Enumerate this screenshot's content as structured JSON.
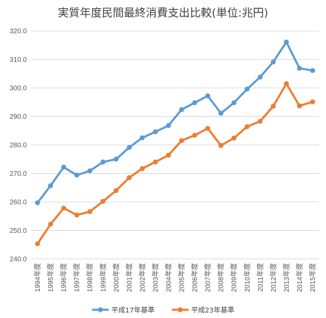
{
  "chart_data": {
    "type": "line",
    "title": "実質年度民間最終消費支出比較(単位:兆円)",
    "xlabel": "",
    "ylabel": "",
    "ylim": [
      240,
      320
    ],
    "ytick_step": 10,
    "y_tick_labels": [
      "240.0",
      "250.0",
      "260.0",
      "270.0",
      "280.0",
      "290.0",
      "300.0",
      "310.0",
      "320.0"
    ],
    "grid": true,
    "legend_position": "bottom",
    "categories": [
      "1994年度",
      "1995年度",
      "1996年度",
      "1997年度",
      "1998年度",
      "1999年度",
      "2000年度",
      "2001年度",
      "2002年度",
      "2003年度",
      "2004年度",
      "2005年度",
      "2006年度",
      "2007年度",
      "2008年度",
      "2009年度",
      "2010年度",
      "2011年度",
      "2012年度",
      "2013年度",
      "2014年度",
      "2015年度"
    ],
    "series": [
      {
        "name": "平成17年基準",
        "color": "#5b9bd5",
        "values": [
          259.7,
          265.7,
          272.2,
          269.4,
          270.9,
          274.0,
          275.0,
          279.1,
          282.5,
          284.6,
          286.8,
          292.4,
          294.8,
          297.2,
          291.1,
          294.8,
          299.6,
          303.8,
          309.1,
          316.1,
          306.9,
          306.1
        ]
      },
      {
        "name": "平成23年基準",
        "color": "#ed7d31",
        "values": [
          245.3,
          252.2,
          257.8,
          255.4,
          256.6,
          260.2,
          264.0,
          268.5,
          271.7,
          274.0,
          276.4,
          281.5,
          283.4,
          285.8,
          279.8,
          282.4,
          286.4,
          288.3,
          293.6,
          301.5,
          293.7,
          295.1
        ]
      }
    ]
  }
}
